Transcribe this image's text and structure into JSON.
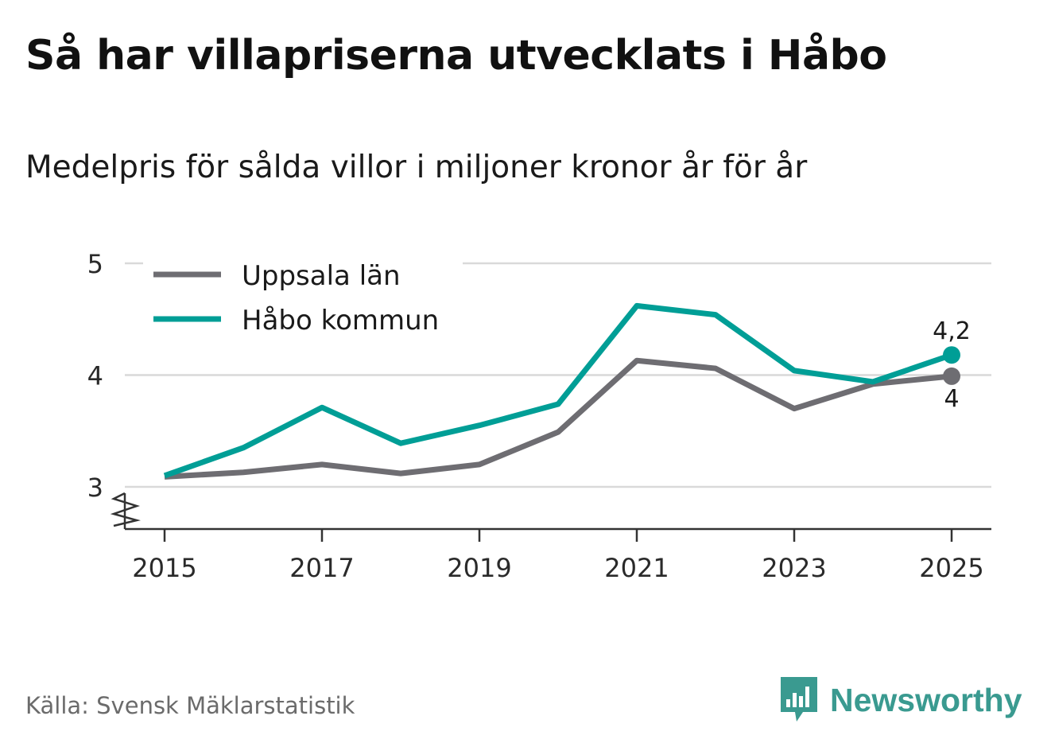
{
  "title": "Så har villapriserna utvecklats i Håbo",
  "subtitle": "Medelpris för sålda villor i miljoner kronor år för år",
  "source": "Källa: Svensk Mäklarstatistik",
  "brand": {
    "name": "Newsworthy",
    "icon": "bar-chart-speech-bubble-icon",
    "color": "#3a9a90"
  },
  "colors": {
    "uppsala": "#6e6d72",
    "habo": "#009e96",
    "grid": "#d9d9d9",
    "axis": "#333333"
  },
  "chart_data": {
    "type": "line",
    "title": "Så har villapriserna utvecklats i Håbo",
    "xlabel": "",
    "ylabel": "Medelpris för sålda villor i miljoner kronor",
    "x": [
      2015,
      2016,
      2017,
      2018,
      2019,
      2020,
      2021,
      2022,
      2023,
      2024,
      2025
    ],
    "x_ticks": [
      "2015",
      "2017",
      "2019",
      "2021",
      "2023",
      "2025"
    ],
    "y_ticks": [
      "3",
      "4",
      "5"
    ],
    "ylim": [
      3,
      5
    ],
    "axis_break": true,
    "grid": true,
    "legend_position": "top-left",
    "series": [
      {
        "name": "Uppsala län",
        "key": "uppsala",
        "values": [
          3.09,
          3.13,
          3.2,
          3.12,
          3.2,
          3.49,
          4.13,
          4.06,
          3.7,
          3.92,
          3.99
        ],
        "end_label": "4"
      },
      {
        "name": "Håbo kommun",
        "key": "habo",
        "values": [
          3.1,
          3.35,
          3.71,
          3.39,
          3.55,
          3.74,
          4.62,
          4.54,
          4.04,
          3.94,
          4.18
        ],
        "end_label": "4,2"
      }
    ]
  }
}
